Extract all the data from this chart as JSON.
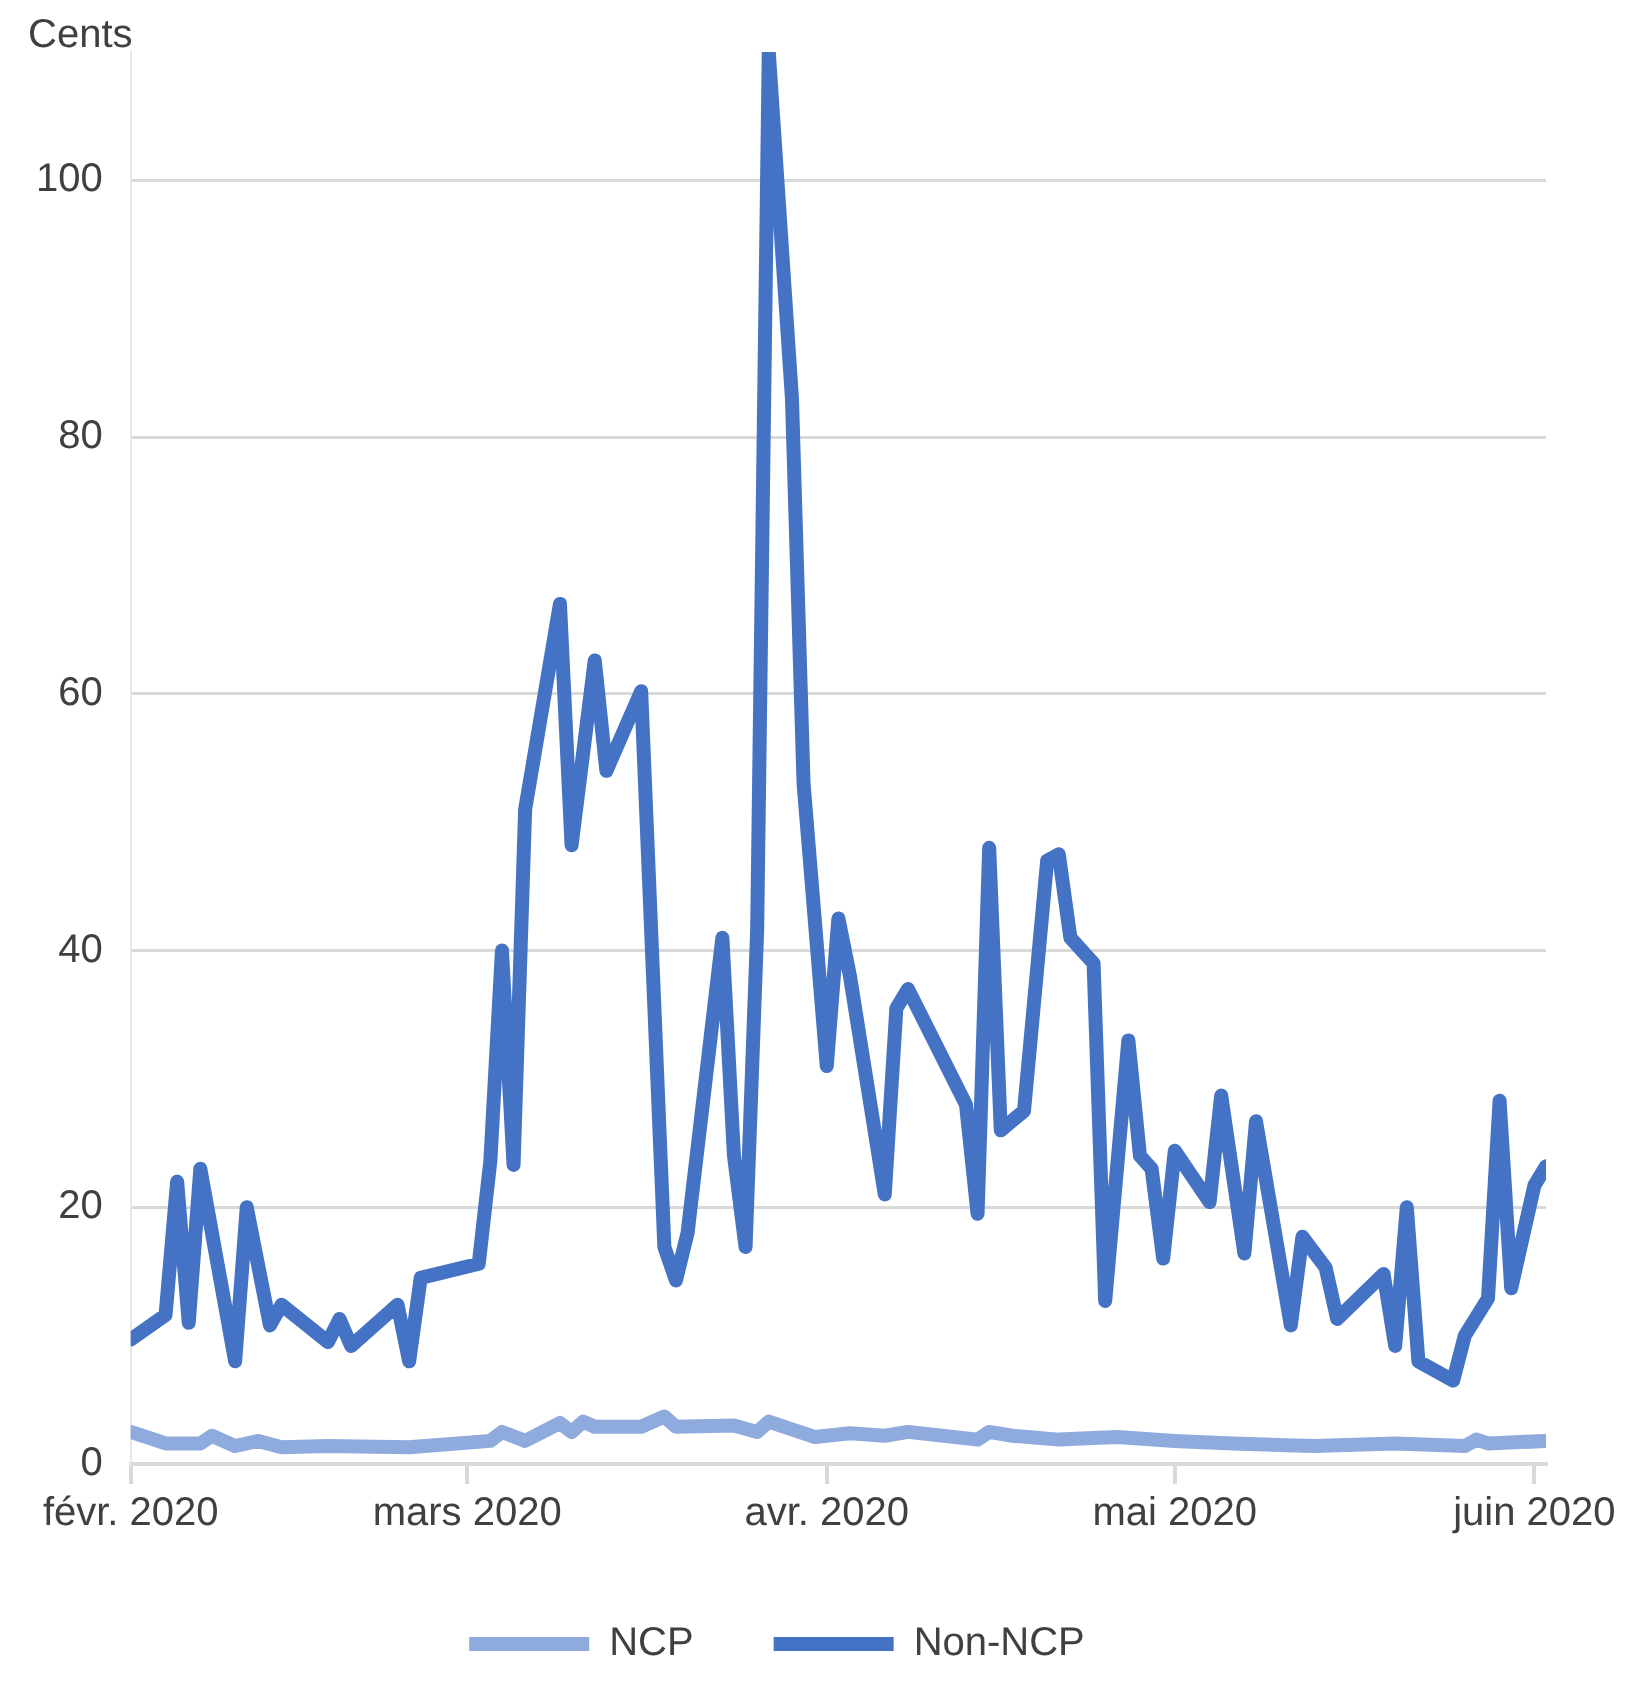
{
  "chart_data": {
    "type": "line",
    "ylabel": "Cents",
    "ylim": [
      0,
      110
    ],
    "yticks": [
      0,
      20,
      40,
      60,
      80,
      100
    ],
    "xlim": [
      "2020-02-01",
      "2020-06-02"
    ],
    "xticks": [
      {
        "value": "2020-02-01",
        "label": "févr. 2020"
      },
      {
        "value": "2020-03-01",
        "label": "mars 2020"
      },
      {
        "value": "2020-04-01",
        "label": "avr. 2020"
      },
      {
        "value": "2020-05-01",
        "label": "mai 2020"
      },
      {
        "value": "2020-06-01",
        "label": "juin 2020"
      }
    ],
    "grid": "y",
    "legend": "bottom",
    "marker": "none",
    "line_style": "solid",
    "series": [
      {
        "name": "NCP",
        "color": "#8faadc",
        "x": [
          "2020-02-01",
          "2020-02-04",
          "2020-02-07",
          "2020-02-08",
          "2020-02-10",
          "2020-02-12",
          "2020-02-14",
          "2020-02-18",
          "2020-02-25",
          "2020-03-03",
          "2020-03-04",
          "2020-03-06",
          "2020-03-09",
          "2020-03-10",
          "2020-03-11",
          "2020-03-12",
          "2020-03-16",
          "2020-03-18",
          "2020-03-19",
          "2020-03-24",
          "2020-03-26",
          "2020-03-27",
          "2020-03-31",
          "2020-04-03",
          "2020-04-06",
          "2020-04-08",
          "2020-04-14",
          "2020-04-15",
          "2020-04-17",
          "2020-04-21",
          "2020-04-26",
          "2020-05-01",
          "2020-05-06",
          "2020-05-13",
          "2020-05-20",
          "2020-05-26",
          "2020-05-27",
          "2020-05-28",
          "2020-06-02"
        ],
        "values": [
          2.5,
          1.6,
          1.6,
          2.2,
          1.4,
          1.8,
          1.3,
          1.4,
          1.3,
          1.8,
          2.5,
          1.8,
          3.2,
          2.5,
          3.3,
          2.9,
          2.9,
          3.7,
          2.9,
          3.0,
          2.5,
          3.3,
          2.1,
          2.4,
          2.2,
          2.5,
          1.9,
          2.5,
          2.2,
          1.9,
          2.1,
          1.8,
          1.6,
          1.4,
          1.6,
          1.4,
          1.9,
          1.6,
          1.8
        ]
      },
      {
        "name": "Non-NCP",
        "color": "#4472c4",
        "x": [
          "2020-02-01",
          "2020-02-04",
          "2020-02-05",
          "2020-02-06",
          "2020-02-07",
          "2020-02-10",
          "2020-02-11",
          "2020-02-13",
          "2020-02-14",
          "2020-02-18",
          "2020-02-19",
          "2020-02-20",
          "2020-02-24",
          "2020-02-25",
          "2020-02-26",
          "2020-03-02",
          "2020-03-03",
          "2020-03-04",
          "2020-03-05",
          "2020-03-06",
          "2020-03-09",
          "2020-03-10",
          "2020-03-12",
          "2020-03-13",
          "2020-03-16",
          "2020-03-18",
          "2020-03-19",
          "2020-03-20",
          "2020-03-23",
          "2020-03-24",
          "2020-03-25",
          "2020-03-26",
          "2020-03-27",
          "2020-03-29",
          "2020-03-30",
          "2020-04-01",
          "2020-04-02",
          "2020-04-03",
          "2020-04-06",
          "2020-04-07",
          "2020-04-08",
          "2020-04-13",
          "2020-04-14",
          "2020-04-15",
          "2020-04-16",
          "2020-04-18",
          "2020-04-20",
          "2020-04-21",
          "2020-04-22",
          "2020-04-24",
          "2020-04-25",
          "2020-04-27",
          "2020-04-28",
          "2020-04-29",
          "2020-04-30",
          "2020-05-01",
          "2020-05-04",
          "2020-05-05",
          "2020-05-07",
          "2020-05-08",
          "2020-05-11",
          "2020-05-12",
          "2020-05-14",
          "2020-05-15",
          "2020-05-19",
          "2020-05-20",
          "2020-05-21",
          "2020-05-22",
          "2020-05-25",
          "2020-05-26",
          "2020-05-28",
          "2020-05-29",
          "2020-05-30",
          "2020-06-01",
          "2020-06-02"
        ],
        "values": [
          9.7,
          11.6,
          22,
          11,
          23,
          8,
          20,
          10.8,
          12.4,
          9.5,
          11.3,
          9.2,
          12.4,
          8,
          14.5,
          15.6,
          23.6,
          40,
          23.3,
          51,
          67,
          48.2,
          62.6,
          54,
          60.2,
          16.9,
          14.3,
          18,
          41,
          24,
          16.9,
          41.6,
          110,
          83,
          53,
          31,
          42.5,
          38,
          21,
          35.5,
          37,
          28,
          19.5,
          48,
          26,
          27.5,
          47,
          47.5,
          41,
          39,
          12.7,
          33,
          24,
          23,
          16,
          24.4,
          20.4,
          28.7,
          16.4,
          26.7,
          10.8,
          17.7,
          15.3,
          11.3,
          14.8,
          9.2,
          20,
          8,
          6.5,
          10,
          12.9,
          28.3,
          13.7,
          21.7,
          23.2
        ]
      }
    ]
  }
}
